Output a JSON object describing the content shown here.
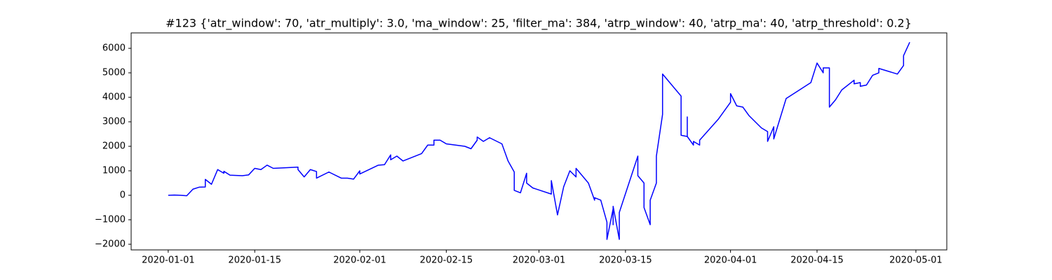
{
  "chart_data": {
    "type": "line",
    "title": "#123 {'atr_window': 70, 'atr_multiply': 3.0, 'ma_window': 25, 'filter_ma': 384, 'atrp_window': 40, 'atrp_ma': 40, 'atrp_threshold': 0.2}",
    "x": [
      "2020-01-01",
      "2020-01-02",
      "2020-01-03",
      "2020-01-04",
      "2020-01-05",
      "2020-01-06",
      "2020-01-07",
      "2020-01-07",
      "2020-01-08",
      "2020-01-09",
      "2020-01-10",
      "2020-01-10",
      "2020-01-11",
      "2020-01-13",
      "2020-01-14",
      "2020-01-15",
      "2020-01-16",
      "2020-01-17",
      "2020-01-18",
      "2020-01-22",
      "2020-01-22",
      "2020-01-23",
      "2020-01-24",
      "2020-01-25",
      "2020-01-25",
      "2020-01-27",
      "2020-01-29",
      "2020-01-30",
      "2020-01-31",
      "2020-02-01",
      "2020-02-01",
      "2020-02-04",
      "2020-02-05",
      "2020-02-06",
      "2020-02-06",
      "2020-02-07",
      "2020-02-08",
      "2020-02-11",
      "2020-02-12",
      "2020-02-13",
      "2020-02-13",
      "2020-02-14",
      "2020-02-15",
      "2020-02-18",
      "2020-02-19",
      "2020-02-20",
      "2020-02-20",
      "2020-02-21",
      "2020-02-22",
      "2020-02-24",
      "2020-02-25",
      "2020-02-26",
      "2020-02-26",
      "2020-02-27",
      "2020-02-28",
      "2020-02-28",
      "2020-02-29",
      "2020-03-03",
      "2020-03-03",
      "2020-03-04",
      "2020-03-05",
      "2020-03-06",
      "2020-03-07",
      "2020-03-07",
      "2020-03-09",
      "2020-03-10",
      "2020-03-10",
      "2020-03-11",
      "2020-03-12",
      "2020-03-12",
      "2020-03-13",
      "2020-03-13",
      "2020-03-13",
      "2020-03-14",
      "2020-03-14",
      "2020-03-17",
      "2020-03-17",
      "2020-03-18",
      "2020-03-18",
      "2020-03-19",
      "2020-03-19",
      "2020-03-20",
      "2020-03-20",
      "2020-03-21",
      "2020-03-21",
      "2020-03-24",
      "2020-03-24",
      "2020-03-25",
      "2020-03-25",
      "2020-03-25",
      "2020-03-26",
      "2020-03-26",
      "2020-03-27",
      "2020-03-27",
      "2020-03-30",
      "2020-04-01",
      "2020-04-01",
      "2020-04-02",
      "2020-04-03",
      "2020-04-04",
      "2020-04-06",
      "2020-04-07",
      "2020-04-07",
      "2020-04-08",
      "2020-04-08",
      "2020-04-10",
      "2020-04-14",
      "2020-04-15",
      "2020-04-16",
      "2020-04-16",
      "2020-04-17",
      "2020-04-17",
      "2020-04-17",
      "2020-04-18",
      "2020-04-19",
      "2020-04-21",
      "2020-04-21",
      "2020-04-22",
      "2020-04-22",
      "2020-04-23",
      "2020-04-24",
      "2020-04-25",
      "2020-04-25",
      "2020-04-28",
      "2020-04-29",
      "2020-04-29",
      "2020-04-30"
    ],
    "values": [
      0,
      10,
      0,
      -20,
      250,
      330,
      340,
      650,
      450,
      1050,
      900,
      980,
      820,
      800,
      830,
      1100,
      1050,
      1230,
      1100,
      1150,
      1050,
      750,
      1050,
      970,
      700,
      950,
      700,
      700,
      660,
      1000,
      870,
      1230,
      1250,
      1650,
      1450,
      1600,
      1400,
      1700,
      2050,
      2050,
      2250,
      2250,
      2100,
      2000,
      1900,
      2250,
      2380,
      2200,
      2350,
      2100,
      1400,
      950,
      200,
      100,
      900,
      500,
      300,
      50,
      600,
      -800,
      350,
      1000,
      750,
      1100,
      500,
      -200,
      -100,
      -200,
      -1100,
      -1800,
      -550,
      -1200,
      -450,
      -1800,
      -700,
      1600,
      800,
      500,
      -500,
      -1200,
      -200,
      500,
      1600,
      3300,
      4950,
      4050,
      2450,
      2400,
      3200,
      2400,
      2050,
      2200,
      2050,
      2250,
      3100,
      3800,
      4150,
      3650,
      3600,
      3250,
      2750,
      2600,
      2200,
      2800,
      2300,
      3950,
      4600,
      5400,
      5000,
      5200,
      5200,
      4500,
      3600,
      3900,
      4300,
      4700,
      4550,
      4600,
      4450,
      4500,
      4900,
      5000,
      5180,
      4950,
      5300,
      5700,
      6250
    ],
    "color": "blue",
    "xlim": [
      "2019-12-26",
      "2020-05-06"
    ],
    "xticks": [
      "2020-01-01",
      "2020-01-15",
      "2020-02-01",
      "2020-02-15",
      "2020-03-01",
      "2020-03-15",
      "2020-04-01",
      "2020-04-15",
      "2020-05-01"
    ],
    "ylim": [
      -2230,
      6630
    ],
    "yticks": [
      {
        "value": -2000,
        "label": "−2000"
      },
      {
        "value": -1000,
        "label": "−1000"
      },
      0,
      1000,
      2000,
      3000,
      4000,
      5000,
      6000
    ],
    "grid": false
  }
}
